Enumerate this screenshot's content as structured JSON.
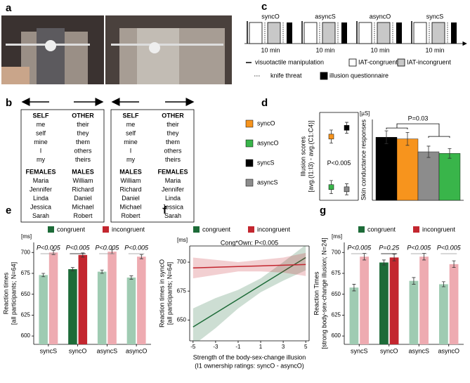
{
  "panels": [
    "a",
    "b",
    "c",
    "d",
    "e",
    "f",
    "g"
  ],
  "iat_boxes": [
    {
      "top": [
        {
          "header": "SELF",
          "words": [
            "me",
            "self",
            "mine",
            "I",
            "my"
          ]
        },
        {
          "header": "OTHER",
          "words": [
            "their",
            "they",
            "them",
            "others",
            "theirs"
          ]
        }
      ],
      "bottom": [
        {
          "header": "FEMALES",
          "words": [
            "Maria",
            "Jennifer",
            "Linda",
            "Jessica",
            "Sarah"
          ]
        },
        {
          "header": "MALES",
          "words": [
            "William",
            "Richard",
            "Daniel",
            "Michael",
            "Robert"
          ]
        }
      ]
    },
    {
      "top": [
        {
          "header": "SELF",
          "words": [
            "me",
            "self",
            "mine",
            "I",
            "my"
          ]
        },
        {
          "header": "OTHER",
          "words": [
            "their",
            "they",
            "them",
            "others",
            "theirs"
          ]
        }
      ],
      "bottom": [
        {
          "header": "MALES",
          "words": [
            "William",
            "Richard",
            "Daniel",
            "Michael",
            "Robert"
          ]
        },
        {
          "header": "FEMALES",
          "words": [
            "Maria",
            "Jennifer",
            "Linda",
            "Jessica",
            "Sarah"
          ]
        }
      ]
    }
  ],
  "timeline": {
    "blocks": [
      {
        "label": "syncO",
        "duration": "10 min"
      },
      {
        "label": "asyncS",
        "duration": "10 min"
      },
      {
        "label": "asyncO",
        "duration": "10 min"
      },
      {
        "label": "syncS",
        "duration": "10 min"
      }
    ],
    "legend": [
      "visuotactile manipulation",
      "IAT-congruent",
      "IAT-incongruent",
      "knife threat",
      "illusion questionnaire"
    ]
  },
  "chart_data": [
    {
      "type": "scatter",
      "ylabel": [
        "Illusion scores",
        "[avg.(I1:I3) - avg.(C1:C4)]"
      ],
      "annotation": "P<0.005",
      "ylim": [
        -0.5,
        3.5
      ],
      "series": [
        {
          "name": "syncO",
          "color": "#f7941d",
          "values": [
            2.4
          ],
          "errors": [
            0.3
          ]
        },
        {
          "name": "asyncO",
          "color": "#39b54a",
          "values": [
            0.1
          ],
          "errors": [
            0.3
          ]
        },
        {
          "name": "syncS",
          "color": "#000000",
          "values": [
            2.8
          ],
          "errors": [
            0.25
          ]
        },
        {
          "name": "asyncS",
          "color": "#8c8c8c",
          "values": [
            0.0
          ],
          "errors": [
            0.25
          ]
        }
      ]
    },
    {
      "type": "bar",
      "ylabel": [
        "Skin conductance responses"
      ],
      "unit": "[µS]",
      "annotation": "P=0.03",
      "ylim": [
        0,
        0.5
      ],
      "values": [
        0.39,
        0.38,
        0.3,
        0.29
      ],
      "errors": [
        0.04,
        0.04,
        0.035,
        0.03
      ],
      "colors": [
        "#000000",
        "#f7941d",
        "#8c8c8c",
        "#39b54a"
      ]
    },
    {
      "type": "bar",
      "ylabel": [
        "Reaction times",
        "[all participants; N=64]"
      ],
      "unit": "[ms]",
      "ylim": [
        590,
        712
      ],
      "yticks": [
        600,
        625,
        650,
        675,
        700
      ],
      "categories": [
        "syncS",
        "syncO",
        "asyncS",
        "asyncO"
      ],
      "series": [
        {
          "name": "congruent",
          "color": "#1d6b38",
          "values": [
            673,
            680,
            677,
            670
          ],
          "errors": [
            2,
            2,
            2,
            2
          ],
          "colors": [
            "#9fcbb2",
            "#1d6b38",
            "#9fcbb2",
            "#9fcbb2"
          ]
        },
        {
          "name": "incongruent",
          "color": "#c3262f",
          "values": [
            700,
            697,
            701,
            695
          ],
          "errors": [
            2.5,
            2.5,
            2.5,
            2.5
          ],
          "colors": [
            "#eeabb1",
            "#c3262f",
            "#eeabb1",
            "#eeabb1"
          ]
        }
      ],
      "annotations": [
        {
          "text": "P<0.005",
          "color": "#999999"
        },
        {
          "text": "P<0.005",
          "color": "#000000"
        },
        {
          "text": "P<0.005",
          "color": "#999999"
        },
        {
          "text": "P<0.005",
          "color": "#999999"
        }
      ]
    },
    {
      "type": "line",
      "ylabel": [
        "Reaction times in syncO",
        "[all participants; N=64]"
      ],
      "unit": "[ms]",
      "annotation": "Cong*Own: P<0.005",
      "xlabel": [
        "Strength of the body-sex-change illusion",
        "(I1 ownership ratings: syncO - asyncO)"
      ],
      "x": [
        -5,
        -3,
        -1,
        1,
        3,
        5
      ],
      "xlim": [
        -5.3,
        5.3
      ],
      "xticks": [
        -5,
        -3,
        -1,
        1,
        3,
        5
      ],
      "ylim": [
        632,
        714
      ],
      "yticks": [
        650,
        675,
        700
      ],
      "series": [
        {
          "name": "congruent",
          "color": "#1d6b38",
          "values": [
            644,
            656,
            668,
            680,
            692,
            704
          ],
          "lower": [
            628,
            643,
            660,
            674,
            684,
            693
          ],
          "upper": [
            660,
            669,
            676,
            686,
            700,
            715
          ]
        },
        {
          "name": "incongruent",
          "color": "#c3262f",
          "values": [
            695,
            695.6,
            696.2,
            696.8,
            697.4,
            698
          ],
          "lower": [
            686,
            689,
            692,
            692,
            691,
            688
          ],
          "upper": [
            704,
            702,
            700,
            702,
            704,
            708
          ]
        }
      ]
    },
    {
      "type": "bar",
      "ylabel": [
        "Reaction Times",
        "[strong body-sex-change illusion; N=24]"
      ],
      "unit": "[ms]",
      "ylim": [
        590,
        712
      ],
      "yticks": [
        600,
        625,
        650,
        675,
        700
      ],
      "categories": [
        "syncS",
        "syncO",
        "asyncS",
        "asyncO"
      ],
      "series": [
        {
          "name": "congruent",
          "color": "#1d6b38",
          "values": [
            658,
            688,
            666,
            662
          ],
          "errors": [
            4,
            3,
            4,
            3
          ],
          "colors": [
            "#9fcbb2",
            "#1d6b38",
            "#9fcbb2",
            "#9fcbb2"
          ]
        },
        {
          "name": "incongruent",
          "color": "#c3262f",
          "values": [
            695,
            694,
            695,
            686
          ],
          "errors": [
            4,
            4,
            4,
            4
          ],
          "colors": [
            "#eeabb1",
            "#c3262f",
            "#eeabb1",
            "#eeabb1"
          ]
        }
      ],
      "annotations": [
        {
          "text": "P<0.005",
          "color": "#999999"
        },
        {
          "text": "P=0.25",
          "color": "#000000"
        },
        {
          "text": "P<0.005",
          "color": "#999999"
        },
        {
          "text": "P<0.005",
          "color": "#999999"
        }
      ]
    }
  ]
}
